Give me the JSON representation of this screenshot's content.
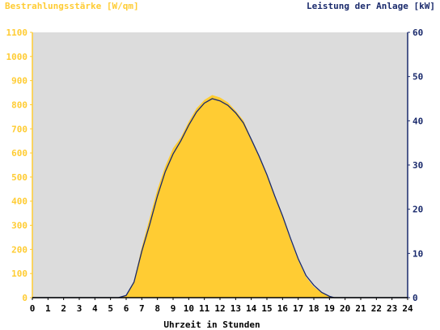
{
  "chart_data": {
    "type": "area",
    "left_axis_label": "Bestrahlungsstärke [W/qm]",
    "right_axis_label": "Leistung der Anlage [kW]",
    "xlabel": "Uhrzeit in Stunden",
    "xlim": [
      0,
      24
    ],
    "x_ticks": [
      "0",
      "1",
      "2",
      "3",
      "4",
      "5",
      "6",
      "7",
      "8",
      "9",
      "10",
      "11",
      "12",
      "13",
      "14",
      "15",
      "16",
      "17",
      "18",
      "19",
      "20",
      "21",
      "22",
      "23",
      "24"
    ],
    "ylim_left": [
      0,
      1100
    ],
    "y_ticks_left": [
      "0",
      "100",
      "200",
      "300",
      "400",
      "500",
      "600",
      "700",
      "800",
      "900",
      "1000",
      "1100"
    ],
    "ylim_right": [
      0,
      60
    ],
    "y_ticks_right": [
      "0",
      "10",
      "20",
      "30",
      "40",
      "50",
      "60"
    ],
    "grid": false,
    "series": [
      {
        "axis": "left",
        "style": "filled-area",
        "x": [
          5.5,
          6.0,
          6.5,
          7.0,
          7.5,
          8.0,
          8.5,
          9.0,
          9.5,
          10.0,
          10.5,
          11.0,
          11.5,
          12.0,
          12.5,
          13.0,
          13.5,
          14.0,
          14.5,
          15.0,
          15.5,
          16.0,
          16.5,
          17.0,
          17.5,
          18.0,
          18.5,
          19.0,
          19.3
        ],
        "values": [
          0,
          10,
          70,
          210,
          330,
          450,
          545,
          620,
          665,
          730,
          785,
          820,
          840,
          830,
          810,
          775,
          735,
          660,
          590,
          510,
          420,
          335,
          240,
          155,
          85,
          45,
          20,
          5,
          0
        ]
      },
      {
        "axis": "right",
        "style": "line",
        "x": [
          5.5,
          6.0,
          6.5,
          7.0,
          7.5,
          8.0,
          8.5,
          9.0,
          9.5,
          10.0,
          10.5,
          11.0,
          11.5,
          12.0,
          12.5,
          13.0,
          13.5,
          14.0,
          14.5,
          15.0,
          15.5,
          16.0,
          16.5,
          17.0,
          17.5,
          18.0,
          18.5,
          19.0,
          19.3
        ],
        "values": [
          0,
          0.5,
          3.5,
          10.5,
          16.5,
          23.0,
          28.5,
          32.5,
          35.5,
          39.0,
          42.0,
          44.0,
          45.0,
          44.5,
          43.5,
          41.8,
          39.5,
          35.8,
          32.0,
          27.8,
          23.0,
          18.5,
          13.5,
          8.8,
          5.0,
          2.8,
          1.2,
          0.3,
          0
        ]
      }
    ],
    "colors": {
      "plot_background": "#dcdcdc",
      "area_fill": "#ffcc33",
      "line": "#1a2a6c",
      "left_axis": "#ffcc33",
      "right_axis": "#1a2a6c",
      "x_axis": "#000000"
    }
  }
}
